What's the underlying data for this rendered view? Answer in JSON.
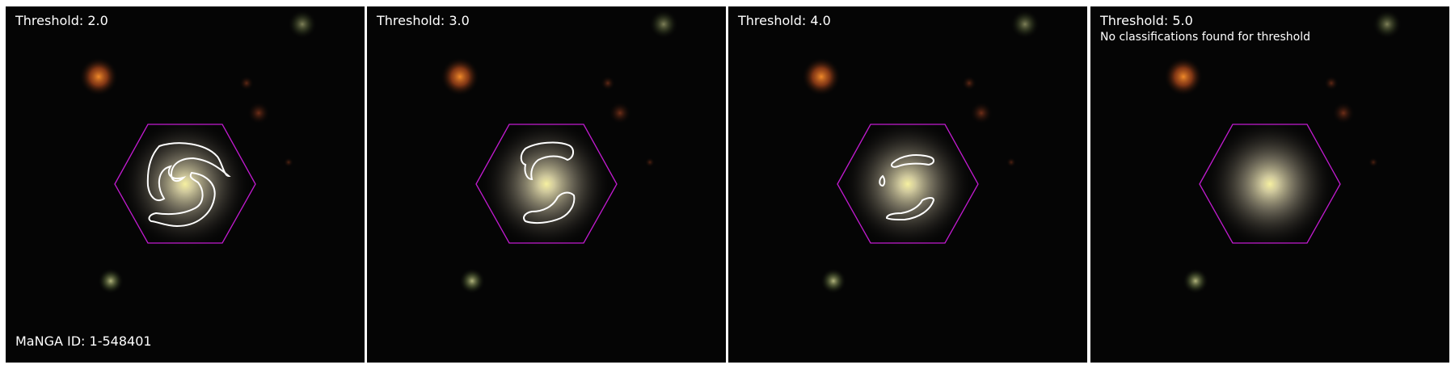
{
  "figure": {
    "panels": [
      {
        "title": "Threshold: 2.0",
        "note": "",
        "footer": "MaNGA ID: 1-548401"
      },
      {
        "title": "Threshold: 3.0",
        "note": "",
        "footer": ""
      },
      {
        "title": "Threshold: 4.0",
        "note": "",
        "footer": ""
      },
      {
        "title": "Threshold: 5.0",
        "note": "No classifications found for threshold",
        "footer": ""
      }
    ]
  },
  "colors": {
    "background": "#050505",
    "hexagon": "#c21bd0",
    "contour": "#ffffff",
    "galaxy_core": "#f3ee7e",
    "galaxy_halo": "#b9b096",
    "neighbor_galaxy": "#d0621c"
  }
}
